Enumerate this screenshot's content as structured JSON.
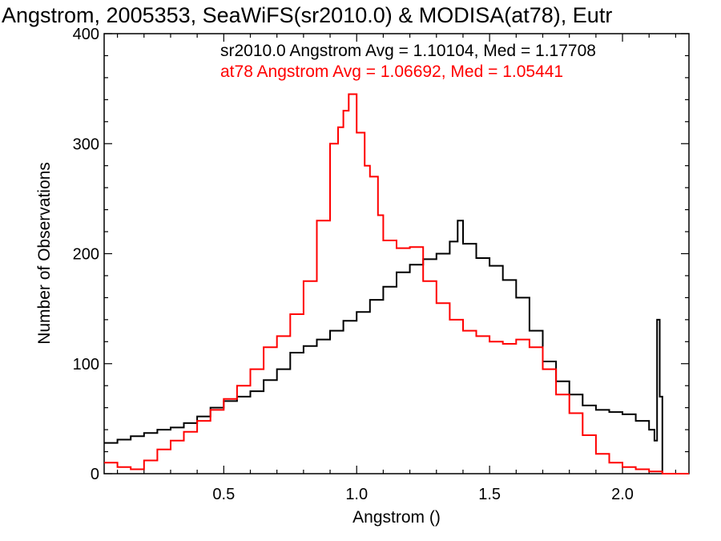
{
  "chart_data": {
    "type": "line",
    "title": "Angstrom, 2005353, SeaWiFS(sr2010.0) & MODISA(at78), Eutr",
    "xlabel": "Angstrom ()",
    "ylabel": "Number of Observations",
    "xlim": [
      0.05,
      2.25
    ],
    "ylim": [
      0,
      400
    ],
    "xticks": [
      0.5,
      1.0,
      1.5,
      2.0
    ],
    "xtick_labels": [
      "0.5",
      "1.0",
      "1.5",
      "2.0"
    ],
    "yticks": [
      0,
      100,
      200,
      300,
      400
    ],
    "ytick_labels": [
      "0",
      "100",
      "200",
      "300",
      "400"
    ],
    "grid": false,
    "legend_position": "top-right",
    "series": [
      {
        "name": "sr2010.0",
        "legend": "sr2010.0 Angstrom Avg = 1.10104, Med = 1.17708",
        "color": "#000000",
        "style": "step",
        "points": [
          [
            0.05,
            28
          ],
          [
            0.1,
            31
          ],
          [
            0.15,
            34
          ],
          [
            0.2,
            37
          ],
          [
            0.25,
            40
          ],
          [
            0.3,
            42
          ],
          [
            0.35,
            46
          ],
          [
            0.4,
            52
          ],
          [
            0.45,
            60
          ],
          [
            0.5,
            66
          ],
          [
            0.55,
            70
          ],
          [
            0.6,
            75
          ],
          [
            0.65,
            85
          ],
          [
            0.7,
            95
          ],
          [
            0.75,
            110
          ],
          [
            0.8,
            116
          ],
          [
            0.85,
            122
          ],
          [
            0.9,
            130
          ],
          [
            0.95,
            139
          ],
          [
            1.0,
            147
          ],
          [
            1.05,
            158
          ],
          [
            1.1,
            170
          ],
          [
            1.15,
            183
          ],
          [
            1.2,
            190
          ],
          [
            1.25,
            195
          ],
          [
            1.3,
            200
          ],
          [
            1.35,
            211
          ],
          [
            1.38,
            230
          ],
          [
            1.4,
            209
          ],
          [
            1.45,
            196
          ],
          [
            1.5,
            189
          ],
          [
            1.55,
            176
          ],
          [
            1.6,
            160
          ],
          [
            1.65,
            130
          ],
          [
            1.7,
            102
          ],
          [
            1.75,
            84
          ],
          [
            1.8,
            72
          ],
          [
            1.85,
            62
          ],
          [
            1.9,
            58
          ],
          [
            1.95,
            56
          ],
          [
            2.0,
            54
          ],
          [
            2.05,
            48
          ],
          [
            2.1,
            40
          ],
          [
            2.12,
            30
          ],
          [
            2.13,
            140
          ],
          [
            2.14,
            70
          ],
          [
            2.15,
            0
          ],
          [
            2.25,
            0
          ]
        ]
      },
      {
        "name": "at78",
        "legend": "at78 Angstrom Avg = 1.06692, Med = 1.05441",
        "color": "#ff0000",
        "style": "step",
        "points": [
          [
            0.05,
            10
          ],
          [
            0.1,
            6
          ],
          [
            0.15,
            4
          ],
          [
            0.2,
            12
          ],
          [
            0.25,
            22
          ],
          [
            0.3,
            30
          ],
          [
            0.35,
            38
          ],
          [
            0.4,
            48
          ],
          [
            0.45,
            58
          ],
          [
            0.5,
            68
          ],
          [
            0.55,
            80
          ],
          [
            0.6,
            95
          ],
          [
            0.65,
            115
          ],
          [
            0.7,
            125
          ],
          [
            0.75,
            145
          ],
          [
            0.8,
            175
          ],
          [
            0.85,
            230
          ],
          [
            0.9,
            300
          ],
          [
            0.93,
            315
          ],
          [
            0.95,
            330
          ],
          [
            0.97,
            345
          ],
          [
            1.0,
            310
          ],
          [
            1.03,
            280
          ],
          [
            1.05,
            270
          ],
          [
            1.08,
            235
          ],
          [
            1.1,
            212
          ],
          [
            1.15,
            205
          ],
          [
            1.2,
            206
          ],
          [
            1.25,
            175
          ],
          [
            1.3,
            155
          ],
          [
            1.35,
            140
          ],
          [
            1.4,
            130
          ],
          [
            1.45,
            125
          ],
          [
            1.5,
            120
          ],
          [
            1.55,
            118
          ],
          [
            1.6,
            122
          ],
          [
            1.65,
            115
          ],
          [
            1.7,
            95
          ],
          [
            1.75,
            72
          ],
          [
            1.8,
            55
          ],
          [
            1.85,
            35
          ],
          [
            1.9,
            18
          ],
          [
            1.95,
            10
          ],
          [
            2.0,
            6
          ],
          [
            2.05,
            4
          ],
          [
            2.1,
            2
          ],
          [
            2.15,
            0
          ],
          [
            2.25,
            0
          ]
        ]
      }
    ]
  }
}
